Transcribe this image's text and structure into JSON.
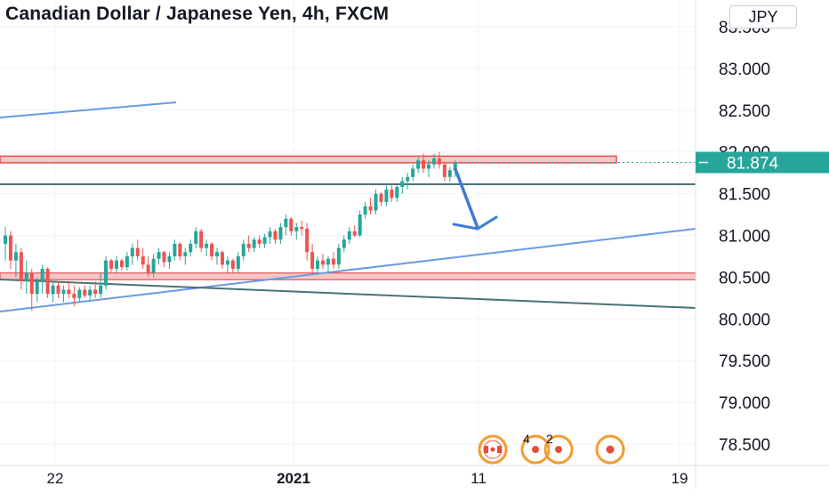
{
  "header": {
    "title": "Canadian Dollar / Japanese Yen, 4h, FXCM",
    "currency": "JPY"
  },
  "chart_data": {
    "type": "candlestick",
    "symbol": "CADJPY",
    "ylim": [
      77.95,
      83.75
    ],
    "y_ticks": [
      "83.500",
      "83.000",
      "82.500",
      "82.000",
      "81.500",
      "81.000",
      "80.500",
      "80.000",
      "79.500",
      "79.000",
      "78.500"
    ],
    "x_ticks": [
      {
        "label": "22",
        "bold": false
      },
      {
        "label": "2021",
        "bold": true
      },
      {
        "label": "11",
        "bold": false
      },
      {
        "label": "19",
        "bold": false
      }
    ],
    "price_label": {
      "value": "81.874",
      "color": "#26a69a"
    },
    "candles": [
      [
        80.9,
        81.1,
        80.7,
        81.0
      ],
      [
        81.0,
        81.05,
        80.6,
        80.7
      ],
      [
        80.7,
        80.9,
        80.5,
        80.8
      ],
      [
        80.8,
        80.85,
        80.35,
        80.45
      ],
      [
        80.45,
        80.7,
        80.3,
        80.55
      ],
      [
        80.55,
        80.6,
        80.1,
        80.3
      ],
      [
        80.3,
        80.5,
        80.2,
        80.45
      ],
      [
        80.45,
        80.65,
        80.3,
        80.6
      ],
      [
        80.6,
        80.62,
        80.25,
        80.3
      ],
      [
        80.3,
        80.45,
        80.2,
        80.4
      ],
      [
        80.4,
        80.45,
        80.25,
        80.3
      ],
      [
        80.3,
        80.4,
        80.2,
        80.35
      ],
      [
        80.35,
        80.45,
        80.25,
        80.3
      ],
      [
        80.3,
        80.4,
        80.15,
        80.25
      ],
      [
        80.25,
        80.38,
        80.2,
        80.35
      ],
      [
        80.35,
        80.4,
        80.25,
        80.28
      ],
      [
        80.28,
        80.4,
        80.22,
        80.35
      ],
      [
        80.35,
        80.45,
        80.25,
        80.3
      ],
      [
        80.3,
        80.55,
        80.25,
        80.4
      ],
      [
        80.4,
        80.75,
        80.35,
        80.7
      ],
      [
        80.7,
        80.72,
        80.55,
        80.6
      ],
      [
        80.6,
        80.75,
        80.55,
        80.7
      ],
      [
        80.7,
        80.72,
        80.58,
        80.62
      ],
      [
        80.62,
        80.8,
        80.58,
        80.75
      ],
      [
        80.75,
        80.9,
        80.65,
        80.85
      ],
      [
        80.85,
        80.95,
        80.7,
        80.75
      ],
      [
        80.75,
        80.85,
        80.6,
        80.65
      ],
      [
        80.65,
        80.75,
        80.5,
        80.55
      ],
      [
        80.55,
        80.78,
        80.5,
        80.72
      ],
      [
        80.72,
        80.85,
        80.65,
        80.8
      ],
      [
        80.8,
        80.82,
        80.62,
        80.68
      ],
      [
        80.68,
        80.8,
        80.6,
        80.75
      ],
      [
        80.75,
        80.95,
        80.7,
        80.9
      ],
      [
        80.9,
        80.92,
        80.7,
        80.75
      ],
      [
        80.75,
        80.85,
        80.65,
        80.8
      ],
      [
        80.8,
        80.95,
        80.75,
        80.9
      ],
      [
        80.9,
        81.1,
        80.85,
        81.05
      ],
      [
        81.05,
        81.08,
        80.8,
        80.85
      ],
      [
        80.85,
        80.95,
        80.75,
        80.9
      ],
      [
        80.9,
        80.92,
        80.7,
        80.75
      ],
      [
        80.75,
        80.85,
        80.65,
        80.8
      ],
      [
        80.8,
        80.82,
        80.6,
        80.65
      ],
      [
        80.65,
        80.75,
        80.55,
        80.7
      ],
      [
        80.7,
        80.72,
        80.55,
        80.6
      ],
      [
        80.6,
        80.8,
        80.55,
        80.75
      ],
      [
        80.75,
        80.95,
        80.7,
        80.9
      ],
      [
        80.9,
        81.0,
        80.8,
        80.85
      ],
      [
        80.85,
        80.98,
        80.8,
        80.95
      ],
      [
        80.95,
        81.0,
        80.85,
        80.9
      ],
      [
        80.9,
        81.02,
        80.85,
        80.98
      ],
      [
        80.98,
        81.1,
        80.9,
        81.05
      ],
      [
        81.05,
        81.08,
        80.9,
        80.95
      ],
      [
        80.95,
        81.15,
        80.9,
        81.1
      ],
      [
        81.1,
        81.25,
        81.0,
        81.2
      ],
      [
        81.2,
        81.22,
        81.0,
        81.05
      ],
      [
        81.05,
        81.15,
        80.95,
        81.1
      ],
      [
        81.1,
        81.18,
        81.0,
        81.08
      ],
      [
        81.08,
        81.15,
        80.7,
        80.8
      ],
      [
        80.8,
        80.9,
        80.55,
        80.6
      ],
      [
        80.6,
        80.75,
        80.55,
        80.7
      ],
      [
        80.7,
        80.78,
        80.6,
        80.65
      ],
      [
        80.65,
        80.75,
        80.55,
        80.72
      ],
      [
        80.72,
        80.8,
        80.6,
        80.65
      ],
      [
        80.65,
        80.9,
        80.6,
        80.85
      ],
      [
        80.85,
        81.0,
        80.8,
        80.95
      ],
      [
        80.95,
        81.1,
        80.9,
        81.05
      ],
      [
        81.05,
        81.12,
        80.98,
        81.0
      ],
      [
        81.0,
        81.3,
        80.98,
        81.25
      ],
      [
        81.25,
        81.4,
        81.2,
        81.35
      ],
      [
        81.35,
        81.45,
        81.25,
        81.3
      ],
      [
        81.3,
        81.55,
        81.25,
        81.5
      ],
      [
        81.5,
        81.52,
        81.35,
        81.4
      ],
      [
        81.4,
        81.6,
        81.35,
        81.55
      ],
      [
        81.55,
        81.62,
        81.4,
        81.45
      ],
      [
        81.45,
        81.6,
        81.4,
        81.58
      ],
      [
        81.58,
        81.7,
        81.5,
        81.65
      ],
      [
        81.65,
        81.75,
        81.55,
        81.7
      ],
      [
        81.7,
        81.85,
        81.65,
        81.8
      ],
      [
        81.8,
        81.95,
        81.75,
        81.9
      ],
      [
        81.9,
        81.98,
        81.75,
        81.8
      ],
      [
        81.8,
        81.9,
        81.7,
        81.85
      ],
      [
        81.85,
        81.98,
        81.8,
        81.92
      ],
      [
        81.92,
        82.0,
        81.8,
        81.85
      ],
      [
        81.85,
        81.88,
        81.65,
        81.7
      ],
      [
        81.7,
        81.82,
        81.65,
        81.78
      ],
      [
        81.78,
        81.9,
        81.7,
        81.87
      ]
    ]
  },
  "annotations": {
    "events": [
      {
        "icon": "canada-flag-icon",
        "label": ""
      },
      {
        "icon": "event-cluster-icon",
        "label": "4"
      },
      {
        "icon": "event-cluster-icon",
        "label": "2"
      },
      {
        "icon": "japan-flag-icon",
        "label": ""
      }
    ]
  },
  "colors": {
    "up": "#26a69a",
    "down": "#ef5350",
    "resistance_zone": "#f6c7c7",
    "resistance_border": "#e05050",
    "trendline_blue": "#6a9be0",
    "support_line": "#4a7275",
    "arrow": "#3d7bd9"
  }
}
